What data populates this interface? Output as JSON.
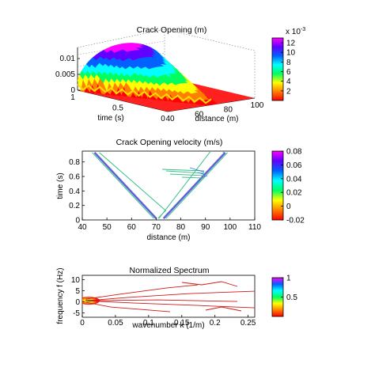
{
  "colors": {
    "background": "#ffffff",
    "axis": "#000000",
    "contour_green": "#39c08a",
    "contour_blue": "#4a6fd8",
    "contour_magenta": "#d026c8",
    "spectrum_red": "#d01818",
    "hot_red": "#ff2020",
    "hot_orange": "#ff8a00",
    "hot_yellow": "#ffdc00"
  },
  "colormap": [
    "#ff0000",
    "#ff8000",
    "#ffff00",
    "#00ff60",
    "#00ffff",
    "#0060ff",
    "#6000ff",
    "#ff00ff"
  ],
  "chart_data": [
    {
      "id": "crack-opening",
      "type": "surface",
      "title": "Crack Opening (m)",
      "xlabel": "distance (m)",
      "ylabel": "time (s)",
      "zlabel": "",
      "x_ticks": [
        "40",
        "60",
        "80",
        "100"
      ],
      "y_ticks": [
        "0",
        "0.5",
        "1"
      ],
      "z_ticks": [
        "0",
        "0.005",
        "0.01"
      ],
      "xlim": [
        40,
        100
      ],
      "ylim": [
        0,
        1
      ],
      "zlim": [
        0,
        0.012
      ],
      "peak": {
        "distance": 71,
        "time": 1.0,
        "opening": 0.0125
      },
      "colorbar": {
        "exponent_label": "x 10",
        "exponent_sup": "-3",
        "ticks": [
          "12",
          "10",
          "8",
          "6",
          "4",
          "2"
        ],
        "range": [
          0,
          13
        ]
      },
      "grid": true
    },
    {
      "id": "crack-opening-velocity",
      "type": "contour",
      "title": "Crack Opening velocity (m/s)",
      "xlabel": "distance (m)",
      "ylabel": "time (s)",
      "x_ticks": [
        "40",
        "50",
        "60",
        "70",
        "80",
        "90",
        "100",
        "110"
      ],
      "y_ticks": [
        "0",
        "0.2",
        "0.4",
        "0.6",
        "0.8"
      ],
      "xlim": [
        40,
        110
      ],
      "ylim": [
        0,
        0.95
      ],
      "fronts": [
        {
          "name": "left front",
          "from": {
            "x": 45,
            "y": 0.93
          },
          "to": {
            "x": 70,
            "y": 0.02
          }
        },
        {
          "name": "right front",
          "from": {
            "x": 73,
            "y": 0.02
          },
          "to": {
            "x": 98,
            "y": 0.93
          }
        }
      ],
      "colorbar": {
        "ticks": [
          "0.08",
          "0.06",
          "0.04",
          "0.02",
          "0",
          "-0.02"
        ],
        "range": [
          -0.02,
          0.08
        ]
      }
    },
    {
      "id": "normalized-spectrum",
      "type": "contour",
      "title": "Normalized Spectrum",
      "xlabel": "wavenumber  k   (1/m)",
      "ylabel": "frequency  f   (Hz)",
      "x_ticks": [
        "0",
        "0.05",
        "0.1",
        "0.15",
        "0.2",
        "0.25"
      ],
      "y_ticks": [
        "10",
        "5",
        "0",
        "-5"
      ],
      "xlim": [
        0,
        0.26
      ],
      "ylim": [
        -7,
        12
      ],
      "peak": {
        "k": 0.005,
        "f": 0.5
      },
      "colorbar": {
        "ticks": [
          "1",
          "0.5"
        ],
        "range": [
          0,
          1
        ]
      }
    }
  ]
}
